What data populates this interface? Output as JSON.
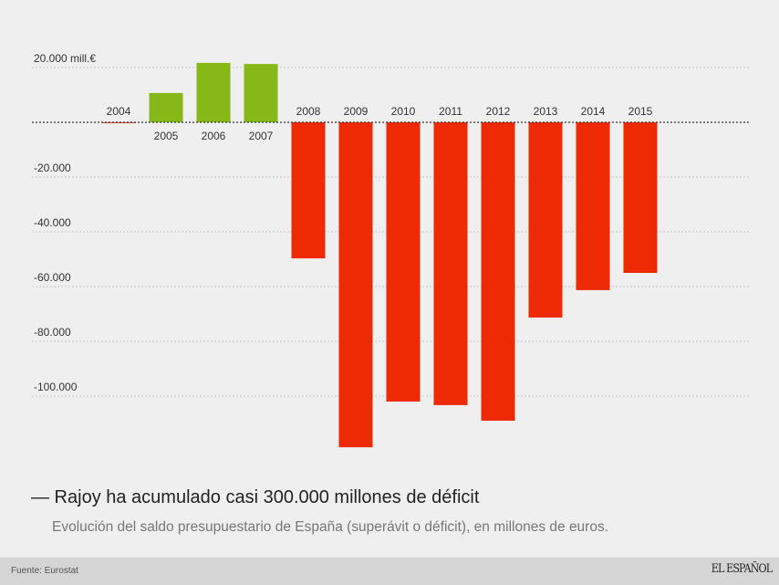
{
  "chart_data": {
    "type": "bar",
    "title": "— Rajoy ha acumulado casi 300.000 millones de déficit",
    "subtitle": "Evolución del saldo presupuestario de España (superávit o déficit), en millones de euros.",
    "categories": [
      "2004",
      "2005",
      "2006",
      "2007",
      "2008",
      "2009",
      "2010",
      "2011",
      "2012",
      "2013",
      "2014",
      "2015"
    ],
    "values": [
      -300,
      10700,
      21700,
      21300,
      -49700,
      -118700,
      -102000,
      -103300,
      -109000,
      -71300,
      -61300,
      -55000
    ],
    "yticks": [
      {
        "value": 20000,
        "label": "20.000 mill.€"
      },
      {
        "value": -20000,
        "label": "-20.000"
      },
      {
        "value": -40000,
        "label": "-40.000"
      },
      {
        "value": -60000,
        "label": "-60.000"
      },
      {
        "value": -80000,
        "label": "-80.000"
      },
      {
        "value": -100000,
        "label": "-100.000"
      }
    ],
    "ylim": [
      -125000,
      25000
    ],
    "colors": {
      "positive": "#86b817",
      "negative": "#ee2a05"
    },
    "grid": true
  },
  "footer": {
    "source": "Fuente: Eurostat",
    "logo": "EL ESPAÑOL"
  }
}
